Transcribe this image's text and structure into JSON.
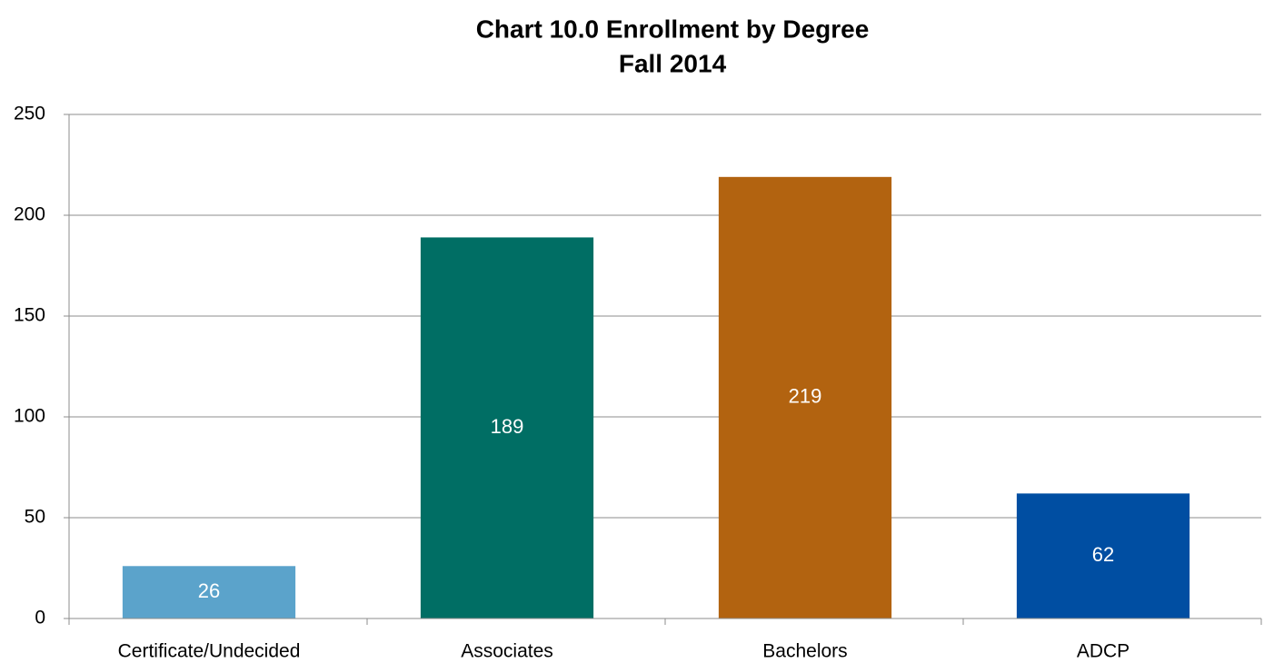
{
  "chart_data": {
    "type": "bar",
    "title": "Chart 10.0 Enrollment by Degree",
    "subtitle": "Fall 2014",
    "categories": [
      "Certificate/Undecided",
      "Associates",
      "Bachelors",
      "ADCP"
    ],
    "values": [
      26,
      189,
      219,
      62
    ],
    "colors": [
      "#5ba3cb",
      "#006e64",
      "#b26310",
      "#004ea2"
    ],
    "ylim": [
      0,
      250
    ],
    "yticks": [
      0,
      50,
      100,
      150,
      200,
      250
    ],
    "grid": true
  }
}
